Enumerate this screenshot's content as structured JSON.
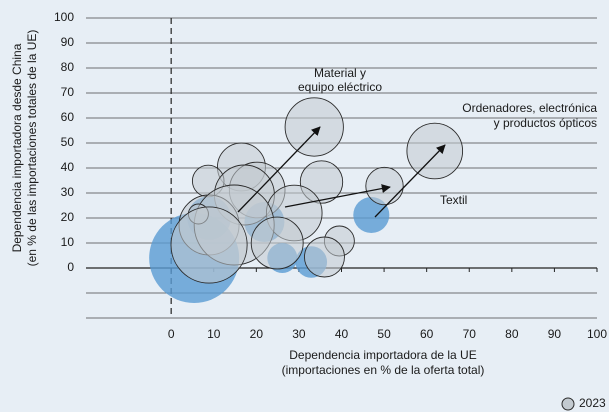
{
  "chart_data": {
    "type": "scatter",
    "xlabel": [
      "Dependencia importadora de la UE",
      "(importaciones en % de la oferta total)"
    ],
    "ylabel": [
      "Dependencia importadora desde China",
      "(en % de las importaciones totales de la UE)"
    ],
    "xlim": [
      -20,
      100
    ],
    "xticks": [
      0,
      10,
      20,
      30,
      40,
      50,
      60,
      70,
      80,
      90,
      100
    ],
    "ylim": [
      -20,
      100
    ],
    "yticks": [
      0,
      10,
      20,
      30,
      40,
      50,
      60,
      70,
      80,
      90,
      100
    ],
    "grid": true,
    "legend": "bottom-right",
    "annotations": [
      [
        "Material y",
        "equipo eléctrico"
      ],
      [
        "Ordenadores, electrónica",
        "y productos ópticos"
      ],
      [
        "Textil"
      ]
    ],
    "series": [
      {
        "color": "#5a9bd3",
        "x": [
          47,
          5.4,
          26.1,
          32.9,
          8.9,
          21.9
        ],
        "values": [
          21.2,
          4,
          4,
          2.4,
          20,
          18.4
        ],
        "sizes": [
          13,
          81,
          9,
          10,
          19,
          16
        ]
      },
      {
        "name": "2023",
        "color": "#c3cad0",
        "x": [
          33.6,
          61.9,
          50.1,
          35.3,
          16.5,
          8.7,
          20.2,
          17.2,
          8.9,
          28.9,
          14.8,
          24.9,
          39.5,
          36,
          6.4,
          8.9
        ],
        "values": [
          56.4,
          46.8,
          32.8,
          34.4,
          40.4,
          34.8,
          31.2,
          29.2,
          17.2,
          22,
          17.2,
          10,
          10.8,
          4.4,
          21.6,
          9.2
        ],
        "sizes": [
          34,
          31,
          14,
          18,
          23,
          10,
          31,
          36,
          36,
          31,
          64,
          27,
          9,
          16,
          4,
          58
        ]
      }
    ]
  }
}
